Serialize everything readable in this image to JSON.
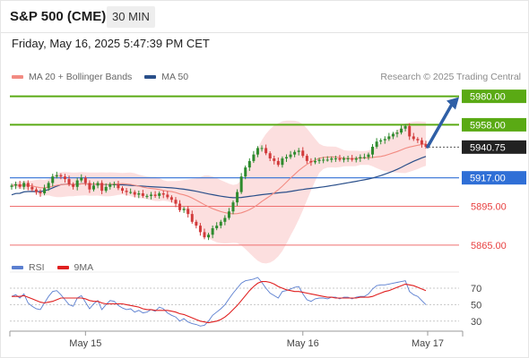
{
  "header": {
    "instrument": "S&P 500 (CME)",
    "timeframe": "30 MIN"
  },
  "datetime": "Friday, May 16, 2025 5:47:39 PM CET",
  "legend": {
    "ma20": {
      "label": "MA 20 + Bollinger Bands",
      "color": "#f28b82"
    },
    "ma50": {
      "label": "MA 50",
      "color": "#2a4f8a"
    }
  },
  "copyright": "Research © 2025 Trading Central",
  "rsi_legend": {
    "rsi": {
      "label": "RSI",
      "color": "#5b7fd0"
    },
    "ma9": {
      "label": "9MA",
      "color": "#e02020"
    }
  },
  "colors": {
    "resistance": "#5aaa14",
    "pivot": "#2f6fd6",
    "support": "#ef6f6f",
    "current": "#222222",
    "candle_up": "#2e8b2e",
    "candle_down": "#d23b3b",
    "band_fill": "#fbd7d7",
    "arrow": "#2f5fa6"
  },
  "chart_data": [
    {
      "type": "candlestick",
      "title": "S&P 500 (CME)",
      "timeframe": "30 MIN",
      "x_ticks": [
        "May 15",
        "May 16",
        "May 17"
      ],
      "ylim": [
        5850,
        5990
      ],
      "levels": [
        {
          "label": "5980.00",
          "value": 5980,
          "kind": "resistance"
        },
        {
          "label": "5958.00",
          "value": 5958,
          "kind": "resistance"
        },
        {
          "label": "5940.75",
          "value": 5940.75,
          "kind": "current"
        },
        {
          "label": "5917.00",
          "value": 5917,
          "kind": "pivot"
        },
        {
          "label": "5895.00",
          "value": 5895,
          "kind": "support"
        },
        {
          "label": "5865.00",
          "value": 5865,
          "kind": "support"
        }
      ],
      "close": [
        5911,
        5912,
        5910,
        5913,
        5910,
        5908,
        5906,
        5905,
        5909,
        5913,
        5918,
        5919,
        5918,
        5916,
        5912,
        5910,
        5915,
        5917,
        5913,
        5908,
        5911,
        5913,
        5907,
        5910,
        5912,
        5912,
        5909,
        5907,
        5906,
        5906,
        5904,
        5905,
        5903,
        5903,
        5904,
        5903,
        5905,
        5904,
        5902,
        5900,
        5897,
        5892,
        5893,
        5889,
        5883,
        5880,
        5875,
        5871,
        5873,
        5878,
        5880,
        5883,
        5886,
        5891,
        5898,
        5906,
        5918,
        5925,
        5930,
        5935,
        5940,
        5940,
        5936,
        5932,
        5930,
        5927,
        5932,
        5933,
        5935,
        5937,
        5938,
        5934,
        5930,
        5929,
        5930,
        5931,
        5931,
        5931,
        5932,
        5932,
        5931,
        5932,
        5932,
        5931,
        5932,
        5933,
        5933,
        5935,
        5941,
        5945,
        5946,
        5947,
        5949,
        5951,
        5952,
        5955,
        5957,
        5949,
        5947,
        5946,
        5943,
        5941
      ]
    },
    {
      "type": "line",
      "title": "RSI",
      "series": [
        {
          "name": "RSI",
          "values": [
            60,
            62,
            58,
            63,
            52,
            48,
            45,
            44,
            52,
            60,
            66,
            67,
            62,
            56,
            50,
            48,
            58,
            61,
            53,
            45,
            51,
            55,
            44,
            50,
            55,
            54,
            49,
            46,
            44,
            45,
            41,
            43,
            40,
            41,
            44,
            42,
            47,
            45,
            40,
            37,
            35,
            30,
            33,
            29,
            27,
            26,
            24,
            25,
            30,
            37,
            41,
            45,
            50,
            57,
            64,
            70,
            76,
            79,
            80,
            81,
            83,
            77,
            70,
            64,
            61,
            58,
            66,
            67,
            69,
            71,
            72,
            63,
            56,
            54,
            57,
            58,
            58,
            57,
            59,
            59,
            57,
            59,
            59,
            57,
            59,
            60,
            60,
            63,
            69,
            73,
            74,
            74,
            75,
            76,
            77,
            78,
            79,
            66,
            62,
            60,
            55,
            50
          ]
        },
        {
          "name": "9MA",
          "values": [
            60,
            60,
            60,
            61,
            59,
            57,
            55,
            53,
            52,
            53,
            54,
            56,
            58,
            58,
            58,
            58,
            58,
            58,
            57,
            55,
            54,
            54,
            52,
            51,
            51,
            51,
            51,
            51,
            50,
            49,
            48,
            47,
            45,
            44,
            44,
            43,
            43,
            43,
            43,
            42,
            41,
            39,
            38,
            36,
            34,
            32,
            30,
            29,
            28,
            29,
            30,
            32,
            35,
            39,
            44,
            49,
            55,
            61,
            67,
            72,
            76,
            78,
            78,
            77,
            75,
            72,
            70,
            68,
            67,
            66,
            66,
            65,
            64,
            63,
            62,
            61,
            60,
            59,
            59,
            58,
            58,
            58,
            58,
            58,
            58,
            59,
            59,
            59,
            60,
            62,
            64,
            66,
            67,
            69,
            71,
            73,
            75,
            74,
            73,
            71,
            69,
            67
          ]
        }
      ],
      "y_ticks": [
        "70",
        "50",
        "30"
      ],
      "ylim": [
        25,
        85
      ]
    }
  ]
}
